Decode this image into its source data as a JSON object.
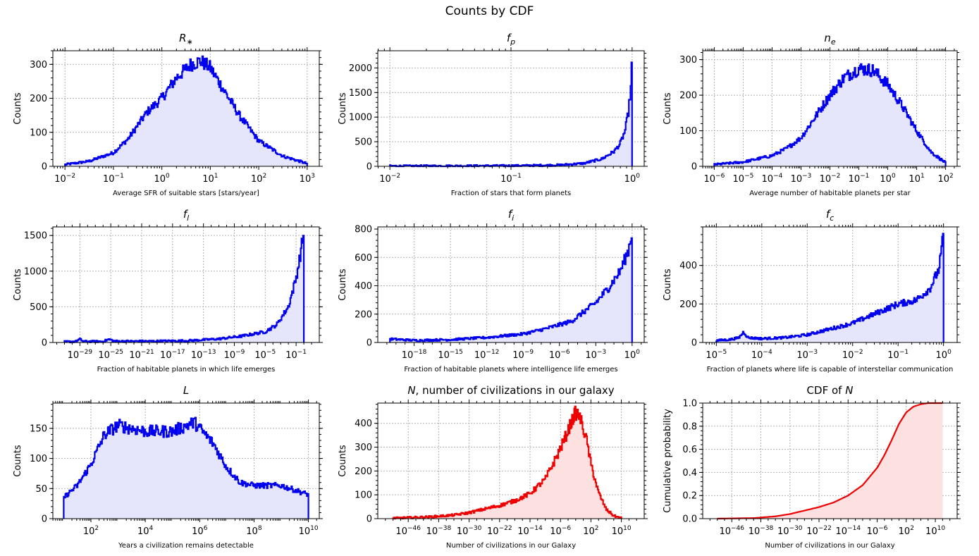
{
  "suptitle": "Counts by CDF",
  "colors": {
    "blue": "#0000ee",
    "blue_fill": "#e5e5fb",
    "red": "#ee0000",
    "red_fill": "#fde0e0",
    "grid": "#b0b0b0"
  },
  "chart_data": [
    {
      "type": "histogram",
      "id": "rstar",
      "title": "R∗",
      "title_main": "R",
      "title_sub": "∗",
      "xlabel": "Average SFR of suitable stars [stars/year]",
      "ylabel": "Counts",
      "xscale": "log",
      "xlim_log10": [
        -2.25,
        3.25
      ],
      "ylim": [
        0,
        340
      ],
      "xtick_exponents": [
        -2,
        -1,
        0,
        1,
        2,
        3
      ],
      "yticks": [
        0,
        100,
        200,
        300
      ],
      "color": "blue",
      "points": [
        [
          -2,
          5
        ],
        [
          -1.5,
          15
        ],
        [
          -1,
          40
        ],
        [
          -0.7,
          80
        ],
        [
          -0.3,
          160
        ],
        [
          0,
          200
        ],
        [
          0.3,
          260
        ],
        [
          0.6,
          300
        ],
        [
          0.8,
          310
        ],
        [
          1,
          290
        ],
        [
          1.3,
          220
        ],
        [
          1.6,
          150
        ],
        [
          2,
          75
        ],
        [
          2.5,
          30
        ],
        [
          3,
          8
        ]
      ]
    },
    {
      "type": "histogram",
      "id": "fp",
      "title": "fp",
      "title_main": "f",
      "title_sub": "p",
      "xlabel": "Fraction of stars that form planets",
      "ylabel": "Counts",
      "xscale": "log",
      "xlim_log10": [
        -2.1,
        0.1
      ],
      "ylim": [
        0,
        2350
      ],
      "xtick_exponents": [
        -2,
        -1,
        0
      ],
      "yticks": [
        0,
        500,
        1000,
        1500,
        2000
      ],
      "color": "blue",
      "points": [
        [
          -2,
          5
        ],
        [
          -1.5,
          8
        ],
        [
          -1,
          12
        ],
        [
          -0.6,
          25
        ],
        [
          -0.4,
          60
        ],
        [
          -0.25,
          150
        ],
        [
          -0.15,
          300
        ],
        [
          -0.1,
          450
        ],
        [
          -0.06,
          700
        ],
        [
          -0.03,
          1100
        ],
        [
          -0.01,
          1600
        ],
        [
          0,
          2250
        ]
      ]
    },
    {
      "type": "histogram",
      "id": "ne",
      "title": "ne",
      "title_main": "n",
      "title_sub": "e",
      "xlabel": "Average number of habitable planets per star",
      "ylabel": "Counts",
      "xscale": "log",
      "xlim_log10": [
        -6.4,
        2.4
      ],
      "ylim": [
        0,
        325
      ],
      "xtick_exponents": [
        -6,
        -5,
        -4,
        -3,
        -2,
        -1,
        0,
        1,
        2
      ],
      "yticks": [
        0,
        100,
        200,
        300
      ],
      "color": "blue",
      "points": [
        [
          -6,
          5
        ],
        [
          -5,
          12
        ],
        [
          -4,
          30
        ],
        [
          -3.5,
          50
        ],
        [
          -3,
          80
        ],
        [
          -2.5,
          140
        ],
        [
          -2,
          200
        ],
        [
          -1.5,
          250
        ],
        [
          -1,
          275
        ],
        [
          -0.5,
          270
        ],
        [
          0,
          230
        ],
        [
          0.5,
          170
        ],
        [
          1,
          100
        ],
        [
          1.5,
          40
        ],
        [
          2,
          10
        ]
      ]
    },
    {
      "type": "histogram",
      "id": "fl",
      "title": "fl",
      "title_main": "f",
      "title_sub": "l",
      "xlabel": "Fraction of habitable planets in which life emerges",
      "ylabel": "Counts",
      "xscale": "log",
      "xlim_log10": [
        -32.5,
        2
      ],
      "ylim": [
        0,
        1620
      ],
      "xtick_exponents": [
        -29,
        -25,
        -21,
        -17,
        -13,
        -9,
        -5,
        -1
      ],
      "yticks": [
        0,
        500,
        1000,
        1500
      ],
      "color": "blue",
      "points": [
        [
          -31,
          10
        ],
        [
          -29.5,
          15
        ],
        [
          -29,
          45
        ],
        [
          -28.5,
          15
        ],
        [
          -26,
          15
        ],
        [
          -25.2,
          45
        ],
        [
          -24.5,
          18
        ],
        [
          -20,
          18
        ],
        [
          -15,
          25
        ],
        [
          -11,
          50
        ],
        [
          -8,
          90
        ],
        [
          -5,
          150
        ],
        [
          -3.5,
          250
        ],
        [
          -2,
          500
        ],
        [
          -1,
          900
        ],
        [
          -0.5,
          1200
        ],
        [
          0,
          1550
        ]
      ]
    },
    {
      "type": "histogram",
      "id": "fi",
      "title": "fi",
      "title_main": "f",
      "title_sub": "i",
      "xlabel": "Fraction of habitable planets where intelligence life emerges",
      "ylabel": "Counts",
      "xscale": "log",
      "xlim_log10": [
        -21,
        1
      ],
      "ylim": [
        0,
        815
      ],
      "xtick_exponents": [
        -18,
        -15,
        -12,
        -9,
        -6,
        -3,
        0
      ],
      "yticks": [
        0,
        200,
        400,
        600,
        800
      ],
      "color": "blue",
      "points": [
        [
          -20,
          25
        ],
        [
          -18,
          15
        ],
        [
          -15,
          20
        ],
        [
          -12,
          35
        ],
        [
          -9,
          60
        ],
        [
          -7,
          100
        ],
        [
          -5,
          150
        ],
        [
          -3,
          280
        ],
        [
          -2,
          380
        ],
        [
          -1,
          500
        ],
        [
          -0.3,
          650
        ],
        [
          0,
          780
        ]
      ]
    },
    {
      "type": "histogram",
      "id": "fc",
      "title": "fc",
      "title_main": "f",
      "title_sub": "c",
      "xlabel": "Fraction of planets where life is capable of interstellar communication",
      "ylabel": "Counts",
      "xscale": "log",
      "xlim_log10": [
        -5.3,
        0.3
      ],
      "ylim": [
        0,
        600
      ],
      "xtick_exponents": [
        -5,
        -4,
        -3,
        -2,
        -1,
        0
      ],
      "yticks": [
        0,
        200,
        400
      ],
      "color": "blue",
      "points": [
        [
          -5,
          10
        ],
        [
          -4.7,
          15
        ],
        [
          -4.5,
          25
        ],
        [
          -4.4,
          55
        ],
        [
          -4.3,
          25
        ],
        [
          -4,
          20
        ],
        [
          -3.5,
          25
        ],
        [
          -3,
          40
        ],
        [
          -2.5,
          70
        ],
        [
          -2,
          100
        ],
        [
          -1.5,
          150
        ],
        [
          -1,
          200
        ],
        [
          -0.6,
          220
        ],
        [
          -0.3,
          280
        ],
        [
          -0.1,
          380
        ],
        [
          0,
          560
        ]
      ]
    },
    {
      "type": "histogram",
      "id": "L",
      "title": "L",
      "title_main": "L",
      "title_sub": "",
      "xlabel": "Years a civilization remains detectable",
      "ylabel": "Counts",
      "xscale": "log",
      "xlim_log10": [
        0.6,
        10.4
      ],
      "ylim": [
        0,
        192
      ],
      "xtick_exponents": [
        2,
        4,
        6,
        8,
        10
      ],
      "yticks": [
        0,
        50,
        100,
        150
      ],
      "color": "blue",
      "points": [
        [
          1,
          35
        ],
        [
          1.5,
          55
        ],
        [
          2,
          90
        ],
        [
          2.5,
          140
        ],
        [
          3,
          155
        ],
        [
          4,
          145
        ],
        [
          5,
          145
        ],
        [
          5.8,
          160
        ],
        [
          6.5,
          125
        ],
        [
          7,
          85
        ],
        [
          7.5,
          60
        ],
        [
          8,
          55
        ],
        [
          9,
          55
        ],
        [
          10,
          40
        ]
      ]
    },
    {
      "type": "histogram",
      "id": "N",
      "title": "N, number of civilizations in our galaxy",
      "title_main": "N",
      "title_rest": ", number of civilizations in our galaxy",
      "xlabel": "Number of civilizations in our Galaxy",
      "ylabel": "Counts",
      "xscale": "log",
      "xlim_log10": [
        -54,
        16
      ],
      "ylim": [
        0,
        485
      ],
      "xtick_exponents": [
        -46,
        -38,
        -30,
        -22,
        -14,
        -6,
        2,
        10
      ],
      "yticks": [
        0,
        100,
        200,
        300,
        400
      ],
      "color": "red",
      "points": [
        [
          -50,
          2
        ],
        [
          -46,
          4
        ],
        [
          -40,
          8
        ],
        [
          -34,
          15
        ],
        [
          -30,
          25
        ],
        [
          -26,
          40
        ],
        [
          -22,
          55
        ],
        [
          -18,
          75
        ],
        [
          -14,
          105
        ],
        [
          -10,
          165
        ],
        [
          -7,
          260
        ],
        [
          -5,
          330
        ],
        [
          -3,
          410
        ],
        [
          -2,
          445
        ],
        [
          -1,
          430
        ],
        [
          0,
          380
        ],
        [
          1,
          320
        ],
        [
          2,
          230
        ],
        [
          4,
          110
        ],
        [
          6,
          40
        ],
        [
          8,
          12
        ],
        [
          10,
          2
        ]
      ]
    },
    {
      "type": "line",
      "id": "cdf",
      "title": "CDF of N",
      "title_main": "CDF of ",
      "title_italic": "N",
      "xlabel": "Number of civilizations in our Galaxy",
      "ylabel": "Cumulative probability",
      "xscale": "log",
      "xlim_log10": [
        -54,
        16
      ],
      "ylim": [
        0,
        1
      ],
      "xtick_exponents": [
        -46,
        -38,
        -30,
        -22,
        -14,
        -6,
        2,
        10
      ],
      "yticks": [
        0,
        0.2,
        0.4,
        0.6,
        0.8,
        1.0
      ],
      "color": "red",
      "points": [
        [
          -50,
          0
        ],
        [
          -40,
          0.005
        ],
        [
          -34,
          0.02
        ],
        [
          -30,
          0.04
        ],
        [
          -26,
          0.07
        ],
        [
          -22,
          0.1
        ],
        [
          -18,
          0.14
        ],
        [
          -14,
          0.2
        ],
        [
          -10,
          0.29
        ],
        [
          -6,
          0.44
        ],
        [
          -4,
          0.55
        ],
        [
          -2,
          0.68
        ],
        [
          0,
          0.82
        ],
        [
          2,
          0.92
        ],
        [
          4,
          0.97
        ],
        [
          6,
          0.99
        ],
        [
          8,
          1.0
        ],
        [
          12,
          1.0
        ]
      ]
    }
  ]
}
